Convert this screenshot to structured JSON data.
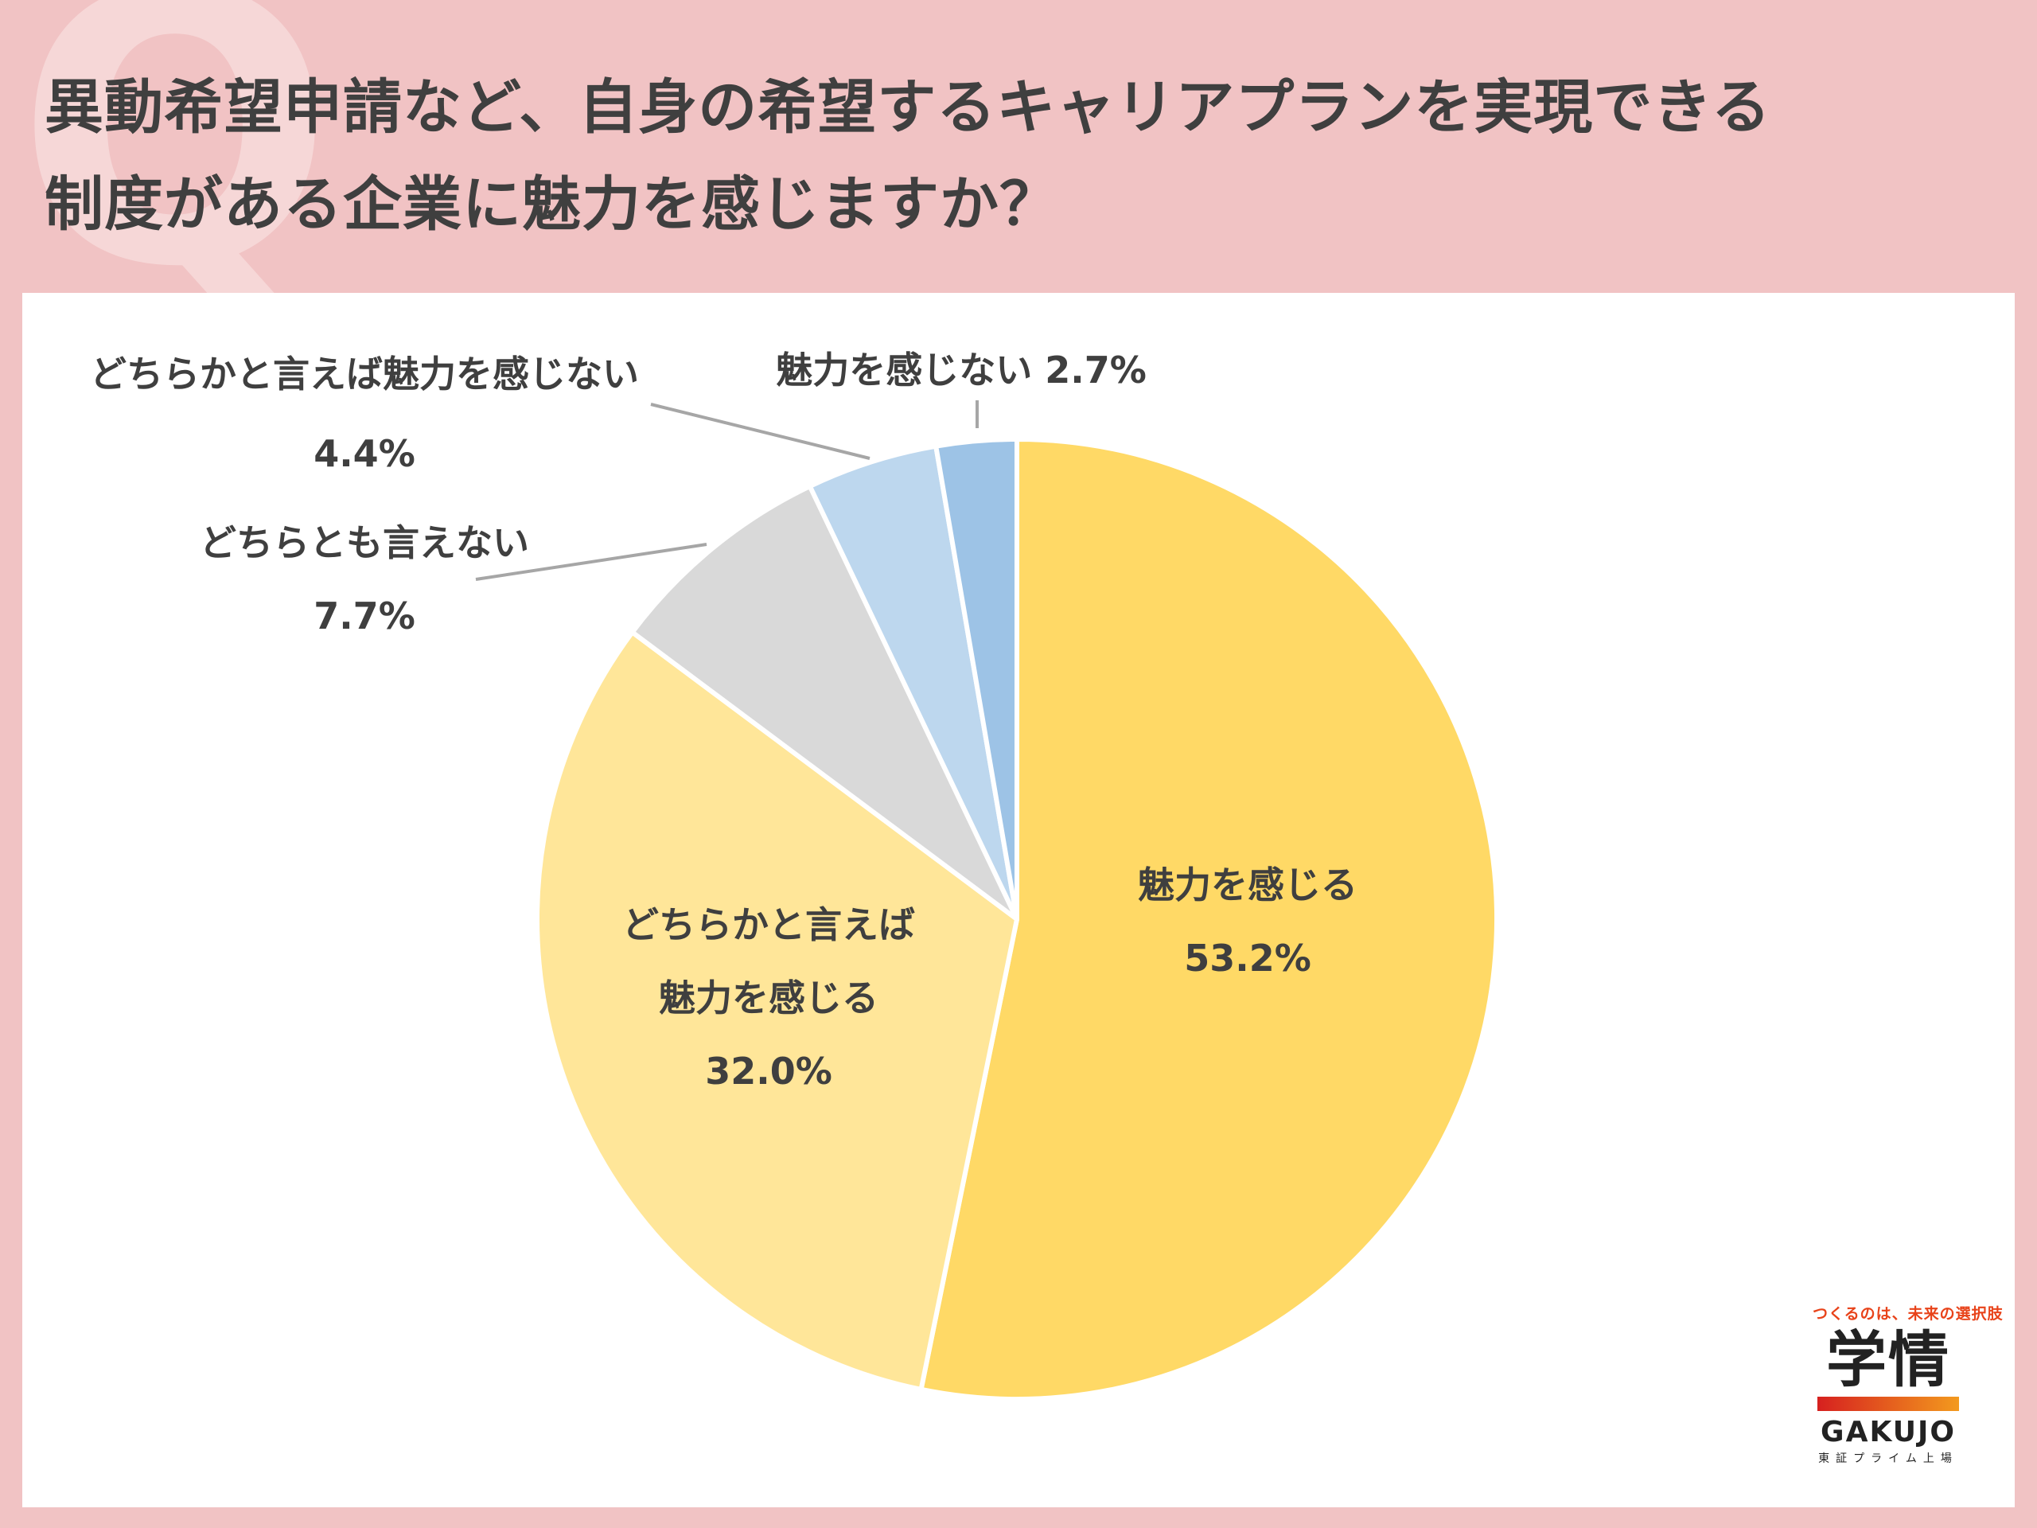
{
  "header": {
    "title_line1": "異動希望申請など、自身の希望するキャリアプランを実現できる",
    "title_line2": "制度がある企業に魅力を感じますか？",
    "q_mark": "Q"
  },
  "chart_data": {
    "type": "pie",
    "title": "異動希望申請など、自身の希望するキャリアプランを実現できる制度がある企業に魅力を感じますか？",
    "slices": [
      {
        "label_lines": [
          "魅力を感じる"
        ],
        "value": 53.2,
        "value_label": "53.2%",
        "color": "#ffd966"
      },
      {
        "label_lines": [
          "どちらかと言えば",
          "魅力を感じる"
        ],
        "value": 32.0,
        "value_label": "32.0%",
        "color": "#ffe699"
      },
      {
        "label_lines": [
          "どちらとも言えない"
        ],
        "value": 7.7,
        "value_label": "7.7%",
        "color": "#d9d9d9"
      },
      {
        "label_lines": [
          "どちらかと言えば魅力を感じない"
        ],
        "value": 4.4,
        "value_label": "4.4%",
        "color": "#bdd7ee"
      },
      {
        "label_lines": [
          "魅力を感じない"
        ],
        "value": 2.7,
        "value_label": "2.7%",
        "color": "#9dc3e6"
      }
    ],
    "start_angle": "12 o'clock",
    "direction": "clockwise"
  },
  "logo": {
    "tagline": "つくるのは、未来の選択肢",
    "kanji": "学情",
    "brand": "GAKUJO",
    "sub": "東証プライム上場"
  }
}
